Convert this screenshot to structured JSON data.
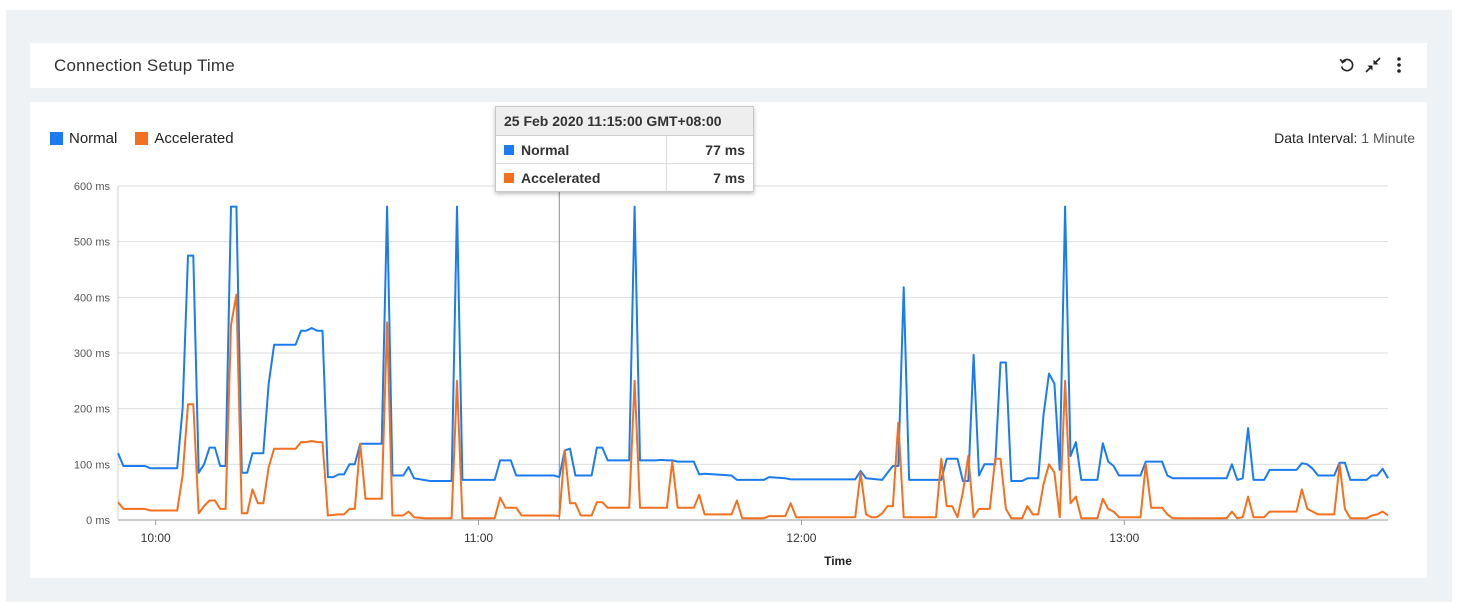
{
  "widget": {
    "title": "Connection Setup Time",
    "icons": [
      "refresh-icon",
      "collapse-icon",
      "more-vertical-icon"
    ]
  },
  "legend": [
    {
      "label": "Normal",
      "color": "#1a7cf0"
    },
    {
      "label": "Accelerated",
      "color": "#f5701e"
    }
  ],
  "interval": {
    "label": "Data Interval:",
    "value": "1 Minute"
  },
  "tooltip": {
    "title": "25 Feb 2020 11:15:00 GMT+08:00",
    "rows": [
      {
        "label": "Normal",
        "value": "77 ms",
        "color": "#1a7cf0"
      },
      {
        "label": "Accelerated",
        "value": "7 ms",
        "color": "#f5701e"
      }
    ]
  },
  "chart_data": {
    "type": "line",
    "xlabel": "Time",
    "ylabel": "",
    "x_range": [
      "09:53",
      "13:49"
    ],
    "ylim": [
      0,
      600
    ],
    "yticks": [
      0,
      100,
      200,
      300,
      400,
      500,
      600
    ],
    "ytick_labels": [
      "0 ms",
      "100 ms",
      "200 ms",
      "300 ms",
      "400 ms",
      "500 ms",
      "600 ms"
    ],
    "xticks": [
      "10:00",
      "11:00",
      "12:00",
      "13:00"
    ],
    "grid": true,
    "crosshair": "11:15",
    "series": [
      {
        "name": "Normal",
        "color": "#1a7cf0",
        "points": [
          [
            "09:53",
            120
          ],
          [
            "09:54",
            97
          ],
          [
            "09:58",
            97
          ],
          [
            "09:59",
            93
          ],
          [
            "10:04",
            93
          ],
          [
            "10:05",
            200
          ],
          [
            "10:06",
            475
          ],
          [
            "10:07",
            475
          ],
          [
            "10:08",
            85
          ],
          [
            "10:09",
            100
          ],
          [
            "10:10",
            130
          ],
          [
            "10:11",
            130
          ],
          [
            "10:12",
            97
          ],
          [
            "10:13",
            97
          ],
          [
            "10:14",
            563
          ],
          [
            "10:15",
            563
          ],
          [
            "10:16",
            85
          ],
          [
            "10:17",
            85
          ],
          [
            "10:18",
            120
          ],
          [
            "10:20",
            120
          ],
          [
            "10:21",
            245
          ],
          [
            "10:22",
            315
          ],
          [
            "10:26",
            315
          ],
          [
            "10:27",
            340
          ],
          [
            "10:28",
            340
          ],
          [
            "10:29",
            345
          ],
          [
            "10:30",
            340
          ],
          [
            "10:31",
            340
          ],
          [
            "10:32",
            77
          ],
          [
            "10:33",
            77
          ],
          [
            "10:34",
            82
          ],
          [
            "10:35",
            82
          ],
          [
            "10:36",
            100
          ],
          [
            "10:37",
            100
          ],
          [
            "10:38",
            137
          ],
          [
            "10:42",
            137
          ],
          [
            "10:43",
            563
          ],
          [
            "10:44",
            80
          ],
          [
            "10:46",
            80
          ],
          [
            "10:47",
            95
          ],
          [
            "10:48",
            75
          ],
          [
            "10:51",
            70
          ],
          [
            "10:55",
            70
          ],
          [
            "10:56",
            563
          ],
          [
            "10:57",
            72
          ],
          [
            "11:03",
            72
          ],
          [
            "11:04",
            107
          ],
          [
            "11:06",
            107
          ],
          [
            "11:07",
            80
          ],
          [
            "11:14",
            80
          ],
          [
            "11:15",
            77
          ],
          [
            "11:16",
            125
          ],
          [
            "11:17",
            128
          ],
          [
            "11:18",
            80
          ],
          [
            "11:21",
            80
          ],
          [
            "11:22",
            130
          ],
          [
            "11:23",
            130
          ],
          [
            "11:24",
            107
          ],
          [
            "11:28",
            107
          ],
          [
            "11:29",
            563
          ],
          [
            "11:30",
            107
          ],
          [
            "11:33",
            107
          ],
          [
            "11:34",
            108
          ],
          [
            "11:35",
            107
          ],
          [
            "11:36",
            107
          ],
          [
            "11:37",
            105
          ],
          [
            "11:40",
            105
          ],
          [
            "11:41",
            82
          ],
          [
            "11:42",
            83
          ],
          [
            "11:47",
            80
          ],
          [
            "11:48",
            72
          ],
          [
            "11:53",
            72
          ],
          [
            "11:54",
            77
          ],
          [
            "11:57",
            75
          ],
          [
            "11:58",
            73
          ],
          [
            "12:10",
            73
          ],
          [
            "12:11",
            88
          ],
          [
            "12:12",
            75
          ],
          [
            "12:15",
            72
          ],
          [
            "12:16",
            85
          ],
          [
            "12:17",
            97
          ],
          [
            "12:18",
            97
          ],
          [
            "12:19",
            418
          ],
          [
            "12:20",
            72
          ],
          [
            "12:26",
            72
          ],
          [
            "12:27",
            110
          ],
          [
            "12:29",
            110
          ],
          [
            "12:30",
            70
          ],
          [
            "12:31",
            70
          ],
          [
            "12:32",
            297
          ],
          [
            "12:33",
            80
          ],
          [
            "12:34",
            100
          ],
          [
            "12:36",
            100
          ],
          [
            "12:37",
            283
          ],
          [
            "12:38",
            283
          ],
          [
            "12:39",
            70
          ],
          [
            "12:41",
            70
          ],
          [
            "12:42",
            75
          ],
          [
            "12:44",
            75
          ],
          [
            "12:45",
            190
          ],
          [
            "12:46",
            263
          ],
          [
            "12:47",
            245
          ],
          [
            "12:48",
            90
          ],
          [
            "12:49",
            563
          ],
          [
            "12:50",
            115
          ],
          [
            "12:51",
            140
          ],
          [
            "12:52",
            72
          ],
          [
            "12:55",
            72
          ],
          [
            "12:56",
            138
          ],
          [
            "12:57",
            105
          ],
          [
            "12:58",
            97
          ],
          [
            "12:59",
            80
          ],
          [
            "13:03",
            80
          ],
          [
            "13:04",
            105
          ],
          [
            "13:07",
            105
          ],
          [
            "13:08",
            80
          ],
          [
            "13:09",
            75
          ],
          [
            "13:19",
            75
          ],
          [
            "13:20",
            100
          ],
          [
            "13:21",
            72
          ],
          [
            "13:22",
            75
          ],
          [
            "13:23",
            165
          ],
          [
            "13:24",
            72
          ],
          [
            "13:26",
            72
          ],
          [
            "13:27",
            90
          ],
          [
            "13:32",
            90
          ],
          [
            "13:33",
            102
          ],
          [
            "13:34",
            100
          ],
          [
            "13:35",
            92
          ],
          [
            "13:36",
            80
          ],
          [
            "13:39",
            80
          ],
          [
            "13:40",
            103
          ],
          [
            "13:41",
            103
          ],
          [
            "13:42",
            72
          ],
          [
            "13:45",
            72
          ],
          [
            "13:46",
            80
          ],
          [
            "13:47",
            80
          ],
          [
            "13:48",
            92
          ],
          [
            "13:49",
            75
          ]
        ]
      },
      {
        "name": "Accelerated",
        "color": "#f5701e",
        "points": [
          [
            "09:53",
            32
          ],
          [
            "09:54",
            20
          ],
          [
            "09:58",
            20
          ],
          [
            "09:59",
            17
          ],
          [
            "10:04",
            17
          ],
          [
            "10:05",
            80
          ],
          [
            "10:06",
            208
          ],
          [
            "10:07",
            208
          ],
          [
            "10:08",
            12
          ],
          [
            "10:09",
            25
          ],
          [
            "10:10",
            35
          ],
          [
            "10:11",
            35
          ],
          [
            "10:12",
            20
          ],
          [
            "10:13",
            20
          ],
          [
            "10:14",
            350
          ],
          [
            "10:15",
            405
          ],
          [
            "10:16",
            12
          ],
          [
            "10:17",
            12
          ],
          [
            "10:18",
            55
          ],
          [
            "10:19",
            30
          ],
          [
            "10:20",
            30
          ],
          [
            "10:21",
            95
          ],
          [
            "10:22",
            128
          ],
          [
            "10:26",
            128
          ],
          [
            "10:27",
            140
          ],
          [
            "10:28",
            140
          ],
          [
            "10:29",
            142
          ],
          [
            "10:30",
            140
          ],
          [
            "10:31",
            140
          ],
          [
            "10:32",
            8
          ],
          [
            "10:34",
            10
          ],
          [
            "10:35",
            10
          ],
          [
            "10:36",
            20
          ],
          [
            "10:37",
            20
          ],
          [
            "10:38",
            137
          ],
          [
            "10:39",
            38
          ],
          [
            "10:42",
            38
          ],
          [
            "10:43",
            355
          ],
          [
            "10:44",
            8
          ],
          [
            "10:46",
            8
          ],
          [
            "10:47",
            15
          ],
          [
            "10:48",
            5
          ],
          [
            "10:50",
            3
          ],
          [
            "10:55",
            3
          ],
          [
            "10:56",
            250
          ],
          [
            "10:57",
            3
          ],
          [
            "11:03",
            3
          ],
          [
            "11:04",
            40
          ],
          [
            "11:05",
            22
          ],
          [
            "11:07",
            22
          ],
          [
            "11:08",
            8
          ],
          [
            "11:14",
            8
          ],
          [
            "11:15",
            7
          ],
          [
            "11:16",
            125
          ],
          [
            "11:17",
            30
          ],
          [
            "11:18",
            30
          ],
          [
            "11:19",
            8
          ],
          [
            "11:21",
            8
          ],
          [
            "11:22",
            32
          ],
          [
            "11:23",
            32
          ],
          [
            "11:24",
            22
          ],
          [
            "11:28",
            22
          ],
          [
            "11:29",
            250
          ],
          [
            "11:30",
            22
          ],
          [
            "11:35",
            22
          ],
          [
            "11:36",
            105
          ],
          [
            "11:37",
            22
          ],
          [
            "11:40",
            22
          ],
          [
            "11:41",
            45
          ],
          [
            "11:42",
            10
          ],
          [
            "11:47",
            10
          ],
          [
            "11:48",
            35
          ],
          [
            "11:49",
            3
          ],
          [
            "11:53",
            3
          ],
          [
            "11:54",
            7
          ],
          [
            "11:57",
            7
          ],
          [
            "11:58",
            30
          ],
          [
            "11:59",
            5
          ],
          [
            "12:10",
            5
          ],
          [
            "12:11",
            85
          ],
          [
            "12:12",
            10
          ],
          [
            "12:13",
            5
          ],
          [
            "12:14",
            5
          ],
          [
            "12:15",
            12
          ],
          [
            "12:16",
            25
          ],
          [
            "12:17",
            25
          ],
          [
            "12:18",
            175
          ],
          [
            "12:19",
            5
          ],
          [
            "12:25",
            5
          ],
          [
            "12:26",
            110
          ],
          [
            "12:27",
            25
          ],
          [
            "12:28",
            25
          ],
          [
            "12:29",
            5
          ],
          [
            "12:30",
            50
          ],
          [
            "12:31",
            115
          ],
          [
            "12:32",
            5
          ],
          [
            "12:33",
            20
          ],
          [
            "12:34",
            20
          ],
          [
            "12:35",
            20
          ],
          [
            "12:36",
            110
          ],
          [
            "12:37",
            110
          ],
          [
            "12:38",
            20
          ],
          [
            "12:39",
            3
          ],
          [
            "12:41",
            3
          ],
          [
            "12:42",
            25
          ],
          [
            "12:43",
            10
          ],
          [
            "12:44",
            10
          ],
          [
            "12:45",
            65
          ],
          [
            "12:46",
            100
          ],
          [
            "12:47",
            85
          ],
          [
            "12:48",
            5
          ],
          [
            "12:49",
            250
          ],
          [
            "12:50",
            30
          ],
          [
            "12:51",
            42
          ],
          [
            "12:52",
            3
          ],
          [
            "12:55",
            3
          ],
          [
            "12:56",
            38
          ],
          [
            "12:57",
            20
          ],
          [
            "12:58",
            15
          ],
          [
            "12:59",
            5
          ],
          [
            "13:03",
            5
          ],
          [
            "13:04",
            100
          ],
          [
            "13:05",
            22
          ],
          [
            "13:07",
            22
          ],
          [
            "13:08",
            10
          ],
          [
            "13:09",
            3
          ],
          [
            "13:19",
            3
          ],
          [
            "13:20",
            15
          ],
          [
            "13:21",
            3
          ],
          [
            "13:22",
            5
          ],
          [
            "13:23",
            42
          ],
          [
            "13:24",
            5
          ],
          [
            "13:26",
            5
          ],
          [
            "13:27",
            15
          ],
          [
            "13:32",
            15
          ],
          [
            "13:33",
            55
          ],
          [
            "13:34",
            20
          ],
          [
            "13:35",
            15
          ],
          [
            "13:36",
            10
          ],
          [
            "13:39",
            10
          ],
          [
            "13:40",
            100
          ],
          [
            "13:41",
            20
          ],
          [
            "13:42",
            3
          ],
          [
            "13:45",
            3
          ],
          [
            "13:46",
            8
          ],
          [
            "13:47",
            10
          ],
          [
            "13:48",
            15
          ],
          [
            "13:49",
            8
          ]
        ]
      }
    ]
  }
}
